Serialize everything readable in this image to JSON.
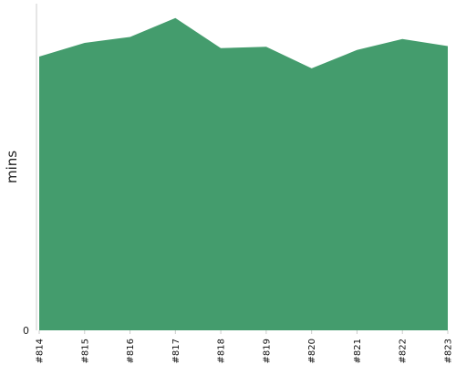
{
  "chart_data": {
    "type": "area",
    "title": "",
    "xlabel": "",
    "ylabel": "mins",
    "categories": [
      "#814",
      "#815",
      "#816",
      "#817",
      "#818",
      "#819",
      "#820",
      "#821",
      "#822",
      "#823"
    ],
    "values": [
      83.8,
      88.0,
      89.8,
      95.6,
      86.4,
      86.8,
      80.2,
      85.8,
      89.2,
      87.0
    ],
    "ylim": [
      0,
      100
    ],
    "yticks": [
      "0"
    ],
    "grid": false,
    "legend": "none",
    "colors": {
      "fill": "#449c6d",
      "axis": "#cccccc"
    }
  }
}
